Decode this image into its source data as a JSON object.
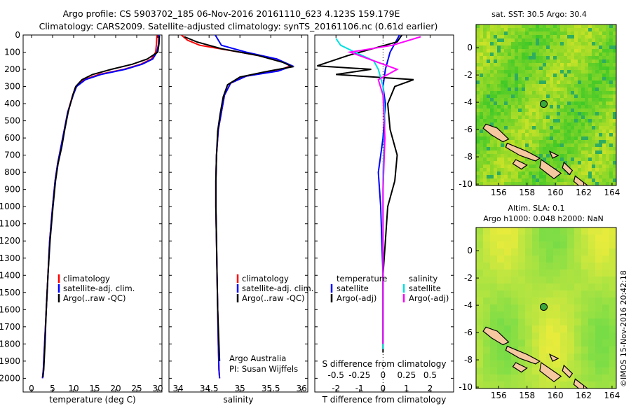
{
  "titles": {
    "line1": "Argo profile: CS 5903702_185 06-Nov-2016 20161110_623 4.123S 159.179E",
    "line2": "Climatology: CARS2009. Satellite-adjusted climatology: synTS_20161106.nc (0.61d earlier)"
  },
  "watermark": "©IMOS 15-Nov-2016 20:42:18",
  "colors": {
    "climatology": "#ff0000",
    "satellite": "#0000ff",
    "argo": "#000000",
    "sal_satellite": "#00e0e0",
    "sal_argo": "#ff00ff"
  },
  "depth_ticks": [
    "0",
    "100",
    "200",
    "300",
    "400",
    "500",
    "600",
    "700",
    "800",
    "900",
    "1000",
    "1100",
    "1200",
    "1300",
    "1400",
    "1500",
    "1600",
    "1700",
    "1800",
    "1900",
    "2000"
  ],
  "temp_panel": {
    "xlabel": "temperature (deg C)",
    "xticks": [
      "0",
      "5",
      "10",
      "15",
      "20",
      "25",
      "30"
    ],
    "legend": [
      "climatology",
      "satellite-adj. clim.",
      "Argo(..raw -QC)"
    ]
  },
  "sal_panel": {
    "xlabel": "salinity",
    "xticks": [
      "34",
      "34.5",
      "35",
      "35.5",
      "36"
    ],
    "legend": [
      "climatology",
      "satellite-adj. clim.",
      "Argo(..raw -QC)"
    ],
    "credit1": "Argo Australia",
    "credit2": "PI: Susan Wijffels"
  },
  "diff_panel": {
    "xlabel": "T difference from climatology",
    "top_label": "S difference from climatology",
    "xticks": [
      "-2",
      "-1",
      "0",
      "1",
      "2"
    ],
    "top_ticks": [
      "-0.5",
      "-0.25",
      "0",
      "0.25",
      "0.5"
    ],
    "legend_head_t": "temperature",
    "legend_head_s": "salinity",
    "legend_t": [
      "satellite",
      "Argo(-adj)"
    ],
    "legend_s": [
      "satellite",
      "Argo(-adj)"
    ]
  },
  "map_sst": {
    "title": "sat. SST: 30.5  Argo: 30.4",
    "xticks": [
      "156",
      "158",
      "160",
      "162",
      "164"
    ],
    "yticks": [
      "0",
      "-2",
      "-4",
      "-6",
      "-8",
      "-10"
    ],
    "float_lon": 159.179,
    "float_lat": -4.123
  },
  "map_sla": {
    "title1": "Altim. SLA: 0.1",
    "title2": "Argo h1000: 0.048 h2000: NaN",
    "xticks": [
      "156",
      "158",
      "160",
      "162",
      "164"
    ],
    "yticks": [
      "0",
      "-2",
      "-4",
      "-6",
      "-8",
      "-10"
    ],
    "float_lon": 159.179,
    "float_lat": -4.123
  },
  "chart_data": [
    {
      "type": "line",
      "title": "Argo profile: CS 5903702_185 06-Nov-2016 20161110_623 4.123S 159.179E",
      "xlabel": "temperature (deg C)",
      "ylabel": "",
      "xlim": [
        -2,
        31
      ],
      "ylim": [
        2080,
        0
      ],
      "series": [
        {
          "name": "climatology",
          "x": [
            29.8,
            29.7,
            29.5,
            28.5,
            26.0,
            22.0,
            16.0,
            12.5,
            10.5,
            9.8,
            8.6,
            7.8,
            7.0,
            6.2,
            5.6,
            5.0,
            4.3,
            3.9,
            3.5,
            3.1,
            2.8,
            2.6
          ],
          "y": [
            0,
            50,
            100,
            140,
            170,
            200,
            230,
            260,
            300,
            350,
            450,
            550,
            650,
            750,
            850,
            1000,
            1200,
            1400,
            1600,
            1800,
            1950,
            2000
          ]
        },
        {
          "name": "satellite-adj. clim.",
          "x": [
            30.3,
            30.2,
            29.8,
            28.8,
            26.3,
            22.3,
            16.5,
            12.8,
            10.7,
            9.9,
            8.6,
            7.8,
            7.0,
            6.2,
            5.6,
            5.0,
            4.3,
            3.9,
            3.5,
            3.1,
            2.8,
            2.6
          ],
          "y": [
            0,
            50,
            100,
            140,
            170,
            200,
            230,
            260,
            300,
            350,
            450,
            550,
            650,
            750,
            850,
            1000,
            1200,
            1400,
            1600,
            1800,
            1950,
            2000
          ]
        },
        {
          "name": "Argo(..raw -QC)",
          "x": [
            30.4,
            30.3,
            30.0,
            27.5,
            24.0,
            19.0,
            14.5,
            12.0,
            10.5,
            9.8,
            8.7,
            7.9,
            7.2,
            6.3,
            5.7,
            5.1,
            4.4,
            3.9,
            3.5,
            3.2,
            2.9,
            2.7
          ],
          "y": [
            5,
            50,
            100,
            140,
            170,
            200,
            230,
            260,
            300,
            350,
            450,
            550,
            650,
            750,
            850,
            1000,
            1200,
            1400,
            1600,
            1800,
            1950,
            1995
          ]
        }
      ]
    },
    {
      "type": "line",
      "title": "",
      "xlabel": "salinity",
      "ylabel": "",
      "xlim": [
        33.85,
        36.1
      ],
      "ylim": [
        2080,
        0
      ],
      "series": [
        {
          "name": "climatology",
          "x": [
            34.05,
            34.15,
            34.35,
            35.0,
            35.6,
            35.82,
            35.6,
            35.1,
            34.85,
            34.75,
            34.7,
            34.65,
            34.62,
            34.61,
            34.61,
            34.62,
            34.63,
            34.64,
            34.65,
            34.66,
            34.67
          ],
          "y": [
            0,
            30,
            60,
            100,
            140,
            180,
            210,
            240,
            280,
            350,
            450,
            550,
            700,
            850,
            1000,
            1200,
            1400,
            1600,
            1800,
            1950,
            2000
          ]
        },
        {
          "name": "satellite-adj. clim.",
          "x": [
            34.6,
            34.65,
            34.7,
            35.1,
            35.6,
            35.85,
            35.62,
            35.1,
            34.85,
            34.75,
            34.7,
            34.65,
            34.62,
            34.61,
            34.61,
            34.62,
            34.63,
            34.64,
            34.65,
            34.66,
            34.67
          ],
          "y": [
            0,
            30,
            60,
            100,
            140,
            180,
            210,
            240,
            280,
            350,
            450,
            550,
            700,
            850,
            1000,
            1200,
            1400,
            1600,
            1800,
            1950,
            2000
          ]
        },
        {
          "name": "Argo(..raw -QC)",
          "x": [
            34.1,
            34.3,
            34.7,
            35.3,
            35.7,
            35.85,
            35.4,
            35.0,
            34.8,
            34.73,
            34.68,
            34.64,
            34.62,
            34.61,
            34.61,
            34.62,
            34.63,
            34.64,
            34.66,
            34.67
          ],
          "y": [
            10,
            40,
            80,
            120,
            160,
            185,
            215,
            245,
            290,
            360,
            460,
            560,
            700,
            850,
            1000,
            1200,
            1400,
            1600,
            1800,
            1900
          ]
        }
      ]
    },
    {
      "type": "line",
      "title": "",
      "xlabel": "T difference from climatology",
      "top_xlabel": "S difference from climatology",
      "ylabel": "",
      "xlim": [
        -2.9,
        3.0
      ],
      "top_xlim": [
        -0.725,
        0.75
      ],
      "ylim": [
        2080,
        0
      ],
      "series": [
        {
          "name": "temperature satellite",
          "x": [
            0.7,
            0.5,
            0.3,
            0.2,
            0.1,
            0.05,
            0.0,
            0.1,
            0.05,
            0.0,
            -0.1,
            -0.2,
            -0.15,
            -0.1,
            -0.05,
            0.0,
            0.0,
            0.0
          ],
          "y": [
            0,
            50,
            100,
            150,
            200,
            250,
            300,
            400,
            500,
            600,
            700,
            800,
            900,
            1000,
            1200,
            1400,
            1600,
            1800
          ]
        },
        {
          "name": "temperature Argo(-adj)",
          "x": [
            0.8,
            0.6,
            -1.5,
            -2.8,
            -0.5,
            -2.0,
            1.3,
            0.5,
            0.2,
            0.3,
            0.6,
            0.5,
            0.2,
            0.1,
            0.0,
            0.0,
            0.0,
            0.0
          ],
          "y": [
            0,
            40,
            120,
            180,
            200,
            230,
            260,
            300,
            400,
            550,
            700,
            850,
            1000,
            1200,
            1400,
            1600,
            1800,
            1850
          ]
        },
        {
          "name": "salinity satellite",
          "x": [
            -0.5,
            -0.45,
            -0.3,
            -0.1,
            -0.05,
            0.0,
            0.02,
            0.0,
            0.0,
            0.0,
            0.0,
            0.0
          ],
          "y": [
            20,
            60,
            100,
            150,
            200,
            300,
            500,
            800,
            1100,
            1400,
            1700,
            1830
          ]
        },
        {
          "name": "salinity Argo(-adj)",
          "x": [
            0.4,
            0.1,
            -0.35,
            -0.1,
            0.15,
            -0.05,
            0.0,
            0.02,
            0.0,
            0.0,
            0.0,
            0.0
          ],
          "y": [
            10,
            60,
            100,
            150,
            200,
            260,
            350,
            600,
            900,
            1200,
            1500,
            1800
          ]
        }
      ]
    }
  ]
}
